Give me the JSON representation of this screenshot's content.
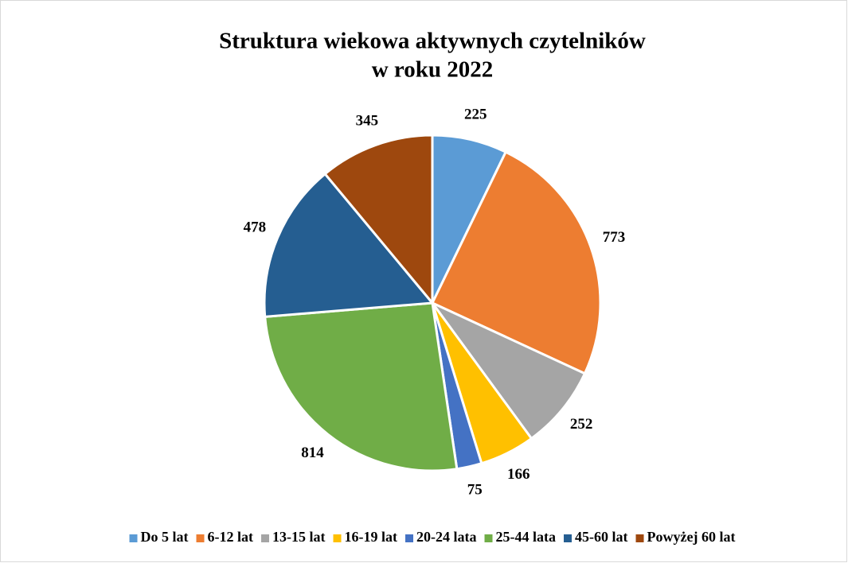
{
  "chart_data": {
    "type": "pie",
    "title": [
      "Struktura wiekowa aktywnych czytelników",
      "w roku 2022"
    ],
    "categories": [
      "Do 5 lat",
      "6-12 lat",
      "13-15 lat",
      "16-19 lat",
      "20-24 lata",
      "25-44 lata",
      "45-60 lat",
      "Powyżej 60 lat"
    ],
    "values": [
      225,
      773,
      252,
      166,
      75,
      814,
      478,
      345
    ],
    "colors": [
      "#5b9bd5",
      "#ed7d31",
      "#a5a5a5",
      "#ffc000",
      "#4472c4",
      "#70ad47",
      "#255e91",
      "#9e480e"
    ],
    "legend": "bottom"
  }
}
